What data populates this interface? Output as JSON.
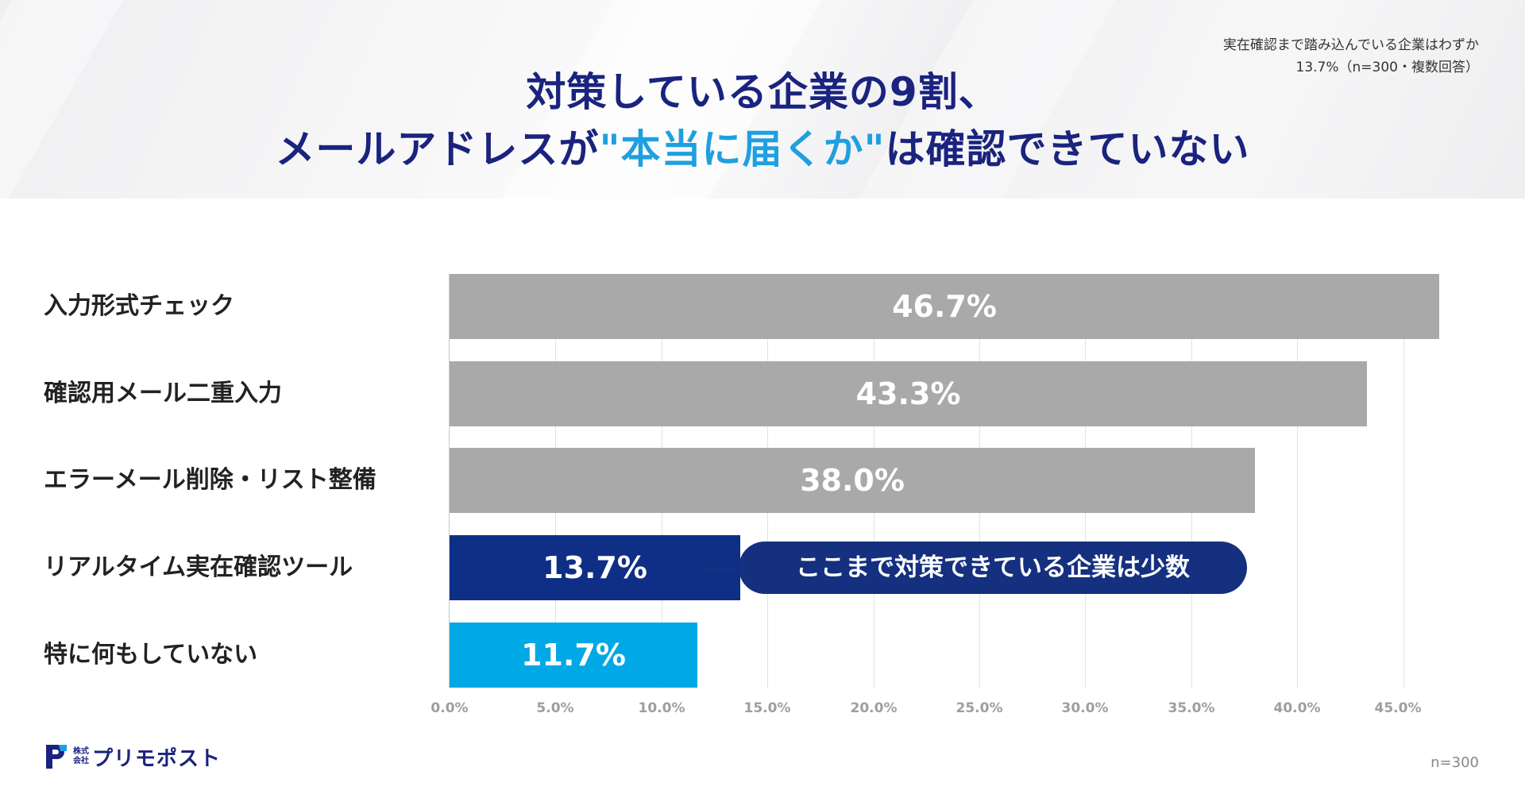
{
  "header": {
    "title_line1": "対策している企業の9割、",
    "title_line2_pre": "メールアドレスが",
    "title_line2_highlight": "\"本当に届くか\"",
    "title_line2_post": "は確認できていない",
    "note_line1": "実在確認まで踏み込んでいる企業はわずか",
    "note_line2": "13.7%（n=300・複数回答）"
  },
  "colors": {
    "title": "#1a237e",
    "highlight": "#1ea0e0",
    "bar_gray": "#a9a9a9",
    "bar_navy": "#0f2f86",
    "bar_cyan": "#00a8e6",
    "callout": "#14307f"
  },
  "chart_data": {
    "type": "bar",
    "orientation": "horizontal",
    "categories": [
      "入力形式チェック",
      "確認用メール二重入力",
      "エラーメール削除・リスト整備",
      "リアルタイム実在確認ツール",
      "特に何もしていない"
    ],
    "values": [
      46.7,
      43.3,
      38.0,
      13.7,
      11.7
    ],
    "value_labels": [
      "46.7%",
      "43.3%",
      "38.0%",
      "13.7%",
      "11.7%"
    ],
    "bar_colors": [
      "#a9a9a9",
      "#a9a9a9",
      "#a9a9a9",
      "#0f2f86",
      "#00a8e6"
    ],
    "xlim": [
      0,
      46.7
    ],
    "x_ticks": [
      "0.0%",
      "5.0%",
      "10.0%",
      "15.0%",
      "20.0%",
      "25.0%",
      "30.0%",
      "35.0%",
      "40.0%",
      "45.0%"
    ],
    "grid": true,
    "annotation": "ここまで対策できている企業は少数",
    "sample_note": "n=300"
  },
  "logo": {
    "small_line1": "株式",
    "small_line2": "会社",
    "name": "プリモポスト"
  }
}
